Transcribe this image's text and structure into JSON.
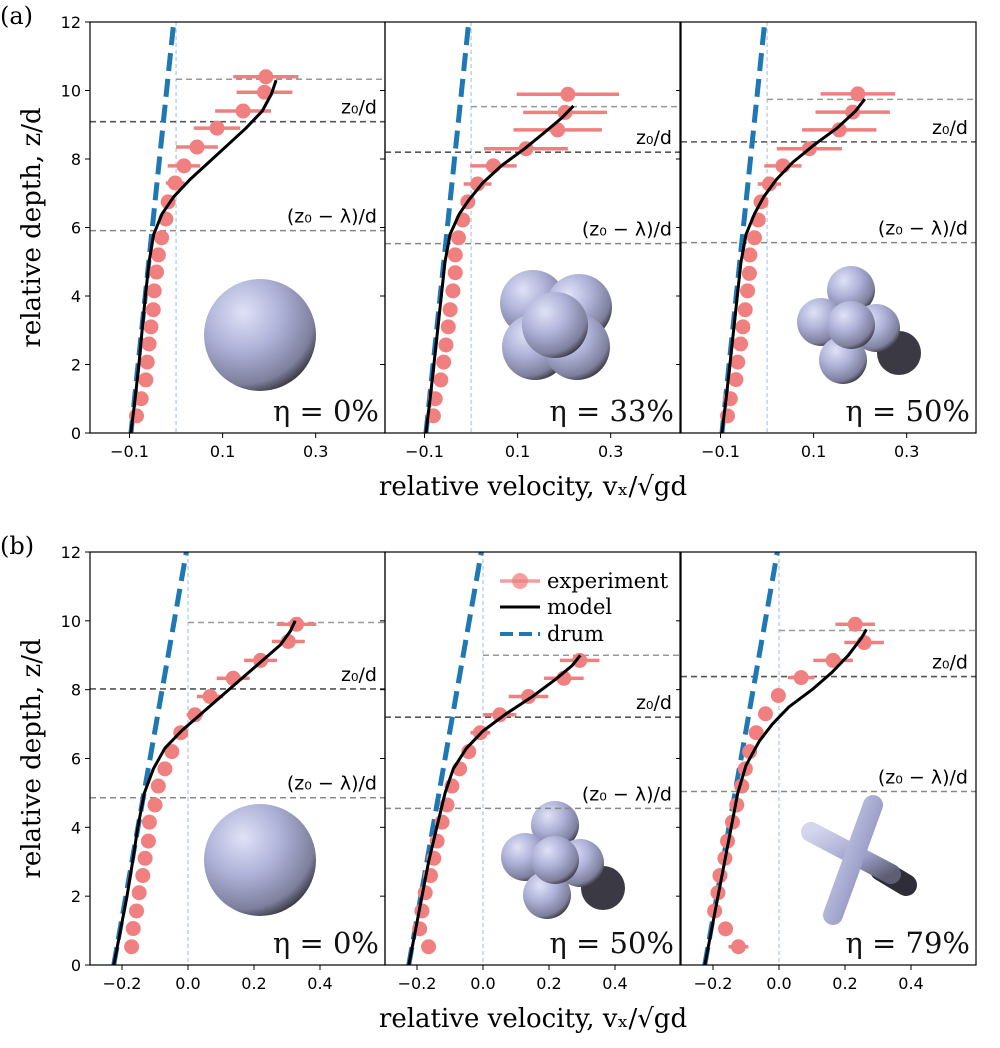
{
  "figure": {
    "panel_labels": [
      "(a)",
      "(b)"
    ],
    "ylabel": "relative depth, z/d",
    "xlabel": "relative velocity, vₓ/√gd",
    "legend": [
      "experiment",
      "model",
      "drum"
    ],
    "colors": {
      "experiment": "#f08080",
      "model": "#000000",
      "drum": "#1f77b4",
      "zero_line": "#aecbee",
      "hline": "#888888",
      "hline_dark": "#555555"
    }
  },
  "chart_data": [
    {
      "type": "scatter",
      "row": "a",
      "ylim": [
        0,
        12
      ],
      "xlim": [
        -0.185,
        0.449
      ],
      "yticks": [
        "0",
        "2",
        "4",
        "6",
        "8",
        "10",
        "12"
      ],
      "xticks": [
        {
          "v": -0.1,
          "label": "−0.1"
        },
        {
          "v": 0.1,
          "label": "0.1"
        },
        {
          "v": 0.3,
          "label": "0.3"
        }
      ],
      "drum": [
        [
          -0.097,
          0
        ],
        [
          -0.005,
          12
        ]
      ],
      "panels": [
        {
          "eta_label": "η = 0%",
          "particle": "sphere",
          "z_top": 10.33,
          "z0": 9.09,
          "z0_minus_lambda": 5.91,
          "z0_label": "z₀/d",
          "z0l_label": "(z₀ − λ)/d",
          "experiment": [
            [
              -0.085,
              0.5,
              0
            ],
            [
              -0.075,
              1.0,
              0
            ],
            [
              -0.065,
              1.55,
              0
            ],
            [
              -0.062,
              2.07,
              0
            ],
            [
              -0.058,
              2.6,
              0
            ],
            [
              -0.054,
              3.1,
              0
            ],
            [
              -0.049,
              3.6,
              0
            ],
            [
              -0.047,
              4.15,
              0
            ],
            [
              -0.042,
              4.7,
              0
            ],
            [
              -0.038,
              5.2,
              0
            ],
            [
              -0.031,
              5.7,
              0
            ],
            [
              -0.022,
              6.25,
              0
            ],
            [
              -0.017,
              6.75,
              0.01
            ],
            [
              -0.002,
              7.3,
              0.02
            ],
            [
              0.017,
              7.8,
              0.035
            ],
            [
              0.045,
              8.35,
              0.045
            ],
            [
              0.088,
              8.9,
              0.05
            ],
            [
              0.144,
              9.4,
              0.06
            ],
            [
              0.19,
              9.95,
              0.06
            ],
            [
              0.193,
              10.4,
              0.07
            ]
          ],
          "model": [
            [
              -0.097,
              0
            ],
            [
              -0.088,
              1
            ],
            [
              -0.08,
              2
            ],
            [
              -0.073,
              3
            ],
            [
              -0.066,
              4
            ],
            [
              -0.058,
              5
            ],
            [
              -0.048,
              5.8
            ],
            [
              -0.03,
              6.4
            ],
            [
              -0.005,
              6.9
            ],
            [
              0.03,
              7.4
            ],
            [
              0.07,
              7.9
            ],
            [
              0.11,
              8.4
            ],
            [
              0.15,
              8.9
            ],
            [
              0.185,
              9.4
            ],
            [
              0.205,
              9.9
            ],
            [
              0.215,
              10.3
            ]
          ]
        },
        {
          "eta_label": "η = 33%",
          "particle": "cluster4",
          "z_top": 9.53,
          "z0": 8.2,
          "z0_minus_lambda": 5.53,
          "z0_label": "z₀/d",
          "z0l_label": "(z₀ − λ)/d",
          "experiment": [
            [
              -0.081,
              0.5,
              0
            ],
            [
              -0.077,
              1.0,
              0
            ],
            [
              -0.065,
              1.55,
              0
            ],
            [
              -0.059,
              2.07,
              0
            ],
            [
              -0.054,
              2.57,
              0
            ],
            [
              -0.049,
              3.1,
              0
            ],
            [
              -0.045,
              3.6,
              0
            ],
            [
              -0.039,
              4.15,
              0
            ],
            [
              -0.034,
              4.68,
              0
            ],
            [
              -0.034,
              5.2,
              0
            ],
            [
              -0.027,
              5.7,
              0
            ],
            [
              -0.018,
              6.22,
              0
            ],
            [
              -0.007,
              6.75,
              0.015
            ],
            [
              0.014,
              7.27,
              0.03
            ],
            [
              0.048,
              7.8,
              0.05
            ],
            [
              0.118,
              8.3,
              0.09
            ],
            [
              0.186,
              8.85,
              0.095
            ],
            [
              0.202,
              9.36,
              0.09
            ],
            [
              0.208,
              9.89,
              0.11
            ]
          ],
          "model": [
            [
              -0.097,
              0
            ],
            [
              -0.088,
              1
            ],
            [
              -0.08,
              2
            ],
            [
              -0.072,
              3
            ],
            [
              -0.064,
              4
            ],
            [
              -0.056,
              5
            ],
            [
              -0.045,
              5.8
            ],
            [
              -0.025,
              6.4
            ],
            [
              -0.005,
              6.8
            ],
            [
              0.025,
              7.3
            ],
            [
              0.065,
              7.8
            ],
            [
              0.115,
              8.3
            ],
            [
              0.16,
              8.8
            ],
            [
              0.195,
              9.2
            ],
            [
              0.22,
              9.55
            ]
          ]
        },
        {
          "eta_label": "η = 50%",
          "particle": "cluster5",
          "z_top": 9.74,
          "z0": 8.5,
          "z0_minus_lambda": 5.56,
          "z0_label": "z₀/d",
          "z0l_label": "(z₀ − λ)/d",
          "experiment": [
            [
              -0.085,
              0.5,
              0
            ],
            [
              -0.079,
              1.0,
              0
            ],
            [
              -0.067,
              1.56,
              0
            ],
            [
              -0.063,
              2.07,
              0
            ],
            [
              -0.057,
              2.6,
              0
            ],
            [
              -0.052,
              3.1,
              0
            ],
            [
              -0.047,
              3.6,
              0
            ],
            [
              -0.042,
              4.15,
              0
            ],
            [
              -0.038,
              4.66,
              0
            ],
            [
              -0.037,
              5.2,
              0
            ],
            [
              -0.027,
              5.7,
              0
            ],
            [
              -0.019,
              6.22,
              0
            ],
            [
              -0.013,
              6.75,
              0.012
            ],
            [
              0.005,
              7.27,
              0.025
            ],
            [
              0.034,
              7.8,
              0.04
            ],
            [
              0.091,
              8.3,
              0.07
            ],
            [
              0.155,
              8.85,
              0.08
            ],
            [
              0.184,
              9.37,
              0.08
            ],
            [
              0.195,
              9.9,
              0.08
            ]
          ],
          "model": [
            [
              -0.097,
              0
            ],
            [
              -0.088,
              1
            ],
            [
              -0.08,
              2
            ],
            [
              -0.072,
              3
            ],
            [
              -0.064,
              4
            ],
            [
              -0.056,
              5
            ],
            [
              -0.045,
              5.8
            ],
            [
              -0.027,
              6.4
            ],
            [
              -0.007,
              6.9
            ],
            [
              0.02,
              7.4
            ],
            [
              0.055,
              7.9
            ],
            [
              0.1,
              8.4
            ],
            [
              0.15,
              8.9
            ],
            [
              0.19,
              9.4
            ],
            [
              0.21,
              9.75
            ]
          ]
        }
      ]
    },
    {
      "type": "scatter",
      "row": "b",
      "ylim": [
        0,
        12
      ],
      "xlim": [
        -0.297,
        0.597
      ],
      "yticks": [
        "0",
        "2",
        "4",
        "6",
        "8",
        "10",
        "12"
      ],
      "xticks": [
        {
          "v": -0.2,
          "label": "−0.2"
        },
        {
          "v": 0.0,
          "label": "0.0"
        },
        {
          "v": 0.2,
          "label": "0.2"
        },
        {
          "v": 0.4,
          "label": "0.4"
        }
      ],
      "drum": [
        [
          -0.225,
          0
        ],
        [
          -0.005,
          12
        ]
      ],
      "panels": [
        {
          "eta_label": "η = 0%",
          "particle": "sphere",
          "z_top": 9.95,
          "z0": 8.02,
          "z0_minus_lambda": 4.86,
          "z0_label": "z₀/d",
          "z0l_label": "(z₀ − λ)/d",
          "experiment": [
            [
              -0.171,
              0.53,
              0
            ],
            [
              -0.166,
              1.06,
              0
            ],
            [
              -0.156,
              1.57,
              0
            ],
            [
              -0.148,
              2.1,
              0
            ],
            [
              -0.137,
              2.6,
              0
            ],
            [
              -0.13,
              3.1,
              0
            ],
            [
              -0.12,
              3.6,
              0
            ],
            [
              -0.117,
              4.15,
              0
            ],
            [
              -0.1,
              4.65,
              0
            ],
            [
              -0.09,
              5.2,
              0
            ],
            [
              -0.07,
              5.7,
              0
            ],
            [
              -0.049,
              6.2,
              0
            ],
            [
              -0.022,
              6.75,
              0
            ],
            [
              0.021,
              7.27,
              0.025
            ],
            [
              0.067,
              7.8,
              0.04
            ],
            [
              0.137,
              8.33,
              0.05
            ],
            [
              0.22,
              8.85,
              0.05
            ],
            [
              0.304,
              9.4,
              0.05
            ],
            [
              0.329,
              9.9,
              0.06
            ]
          ],
          "model": [
            [
              -0.225,
              0
            ],
            [
              -0.205,
              1
            ],
            [
              -0.185,
              2
            ],
            [
              -0.168,
              3
            ],
            [
              -0.152,
              4
            ],
            [
              -0.132,
              5
            ],
            [
              -0.105,
              5.7
            ],
            [
              -0.07,
              6.3
            ],
            [
              -0.02,
              6.8
            ],
            [
              0.04,
              7.3
            ],
            [
              0.1,
              7.8
            ],
            [
              0.16,
              8.3
            ],
            [
              0.22,
              8.8
            ],
            [
              0.28,
              9.3
            ],
            [
              0.31,
              9.7
            ],
            [
              0.325,
              10.0
            ]
          ]
        },
        {
          "eta_label": "η = 50%",
          "particle": "cluster5",
          "z_top": 9.0,
          "z0": 7.2,
          "z0_minus_lambda": 4.55,
          "z0_label": "z₀/d",
          "z0l_label": "(z₀ − λ)/d",
          "experiment": [
            [
              -0.165,
              0.53,
              0
            ],
            [
              -0.192,
              1.05,
              0
            ],
            [
              -0.185,
              1.57,
              0
            ],
            [
              -0.175,
              2.1,
              0
            ],
            [
              -0.159,
              2.6,
              0
            ],
            [
              -0.149,
              3.1,
              0
            ],
            [
              -0.139,
              3.6,
              0
            ],
            [
              -0.124,
              4.15,
              0
            ],
            [
              -0.109,
              4.65,
              0
            ],
            [
              -0.094,
              5.2,
              0
            ],
            [
              -0.071,
              5.7,
              0
            ],
            [
              -0.043,
              6.2,
              0
            ],
            [
              -0.008,
              6.75,
              0.03
            ],
            [
              0.051,
              7.27,
              0.05
            ],
            [
              0.138,
              7.8,
              0.06
            ],
            [
              0.245,
              8.33,
              0.06
            ],
            [
              0.293,
              8.85,
              0.06
            ]
          ],
          "model": [
            [
              -0.225,
              0
            ],
            [
              -0.205,
              1
            ],
            [
              -0.185,
              2
            ],
            [
              -0.165,
              3
            ],
            [
              -0.14,
              4
            ],
            [
              -0.115,
              5
            ],
            [
              -0.09,
              5.7
            ],
            [
              -0.05,
              6.3
            ],
            [
              0.0,
              6.8
            ],
            [
              0.07,
              7.3
            ],
            [
              0.15,
              7.8
            ],
            [
              0.22,
              8.3
            ],
            [
              0.27,
              8.7
            ],
            [
              0.295,
              9.0
            ]
          ]
        },
        {
          "eta_label": "η = 79%",
          "particle": "cross",
          "z_top": 9.72,
          "z0": 8.38,
          "z0_minus_lambda": 5.04,
          "z0_label": "z₀/d",
          "z0l_label": "(z₀ − λ)/d",
          "experiment": [
            [
              -0.123,
              0.53,
              0.03
            ],
            [
              -0.162,
              1.05,
              0
            ],
            [
              -0.195,
              1.57,
              0
            ],
            [
              -0.185,
              2.1,
              0
            ],
            [
              -0.179,
              2.6,
              0
            ],
            [
              -0.164,
              3.1,
              0
            ],
            [
              -0.156,
              3.6,
              0
            ],
            [
              -0.141,
              4.15,
              0
            ],
            [
              -0.128,
              4.65,
              0
            ],
            [
              -0.113,
              5.2,
              0
            ],
            [
              -0.102,
              5.7,
              0
            ],
            [
              -0.089,
              6.2,
              0
            ],
            [
              -0.069,
              6.75,
              0
            ],
            [
              -0.041,
              7.3,
              0
            ],
            [
              -0.002,
              7.83,
              0
            ],
            [
              0.067,
              8.35,
              0.04
            ],
            [
              0.164,
              8.85,
              0.06
            ],
            [
              0.258,
              9.37,
              0.06
            ],
            [
              0.231,
              9.9,
              0.06
            ]
          ],
          "model": [
            [
              -0.225,
              0
            ],
            [
              -0.205,
              1
            ],
            [
              -0.185,
              2
            ],
            [
              -0.165,
              3
            ],
            [
              -0.145,
              4
            ],
            [
              -0.125,
              5
            ],
            [
              -0.1,
              5.8
            ],
            [
              -0.06,
              6.5
            ],
            [
              -0.02,
              7.0
            ],
            [
              0.03,
              7.5
            ],
            [
              0.1,
              8.0
            ],
            [
              0.16,
              8.5
            ],
            [
              0.21,
              9.0
            ],
            [
              0.25,
              9.5
            ],
            [
              0.265,
              9.75
            ]
          ]
        }
      ]
    }
  ]
}
